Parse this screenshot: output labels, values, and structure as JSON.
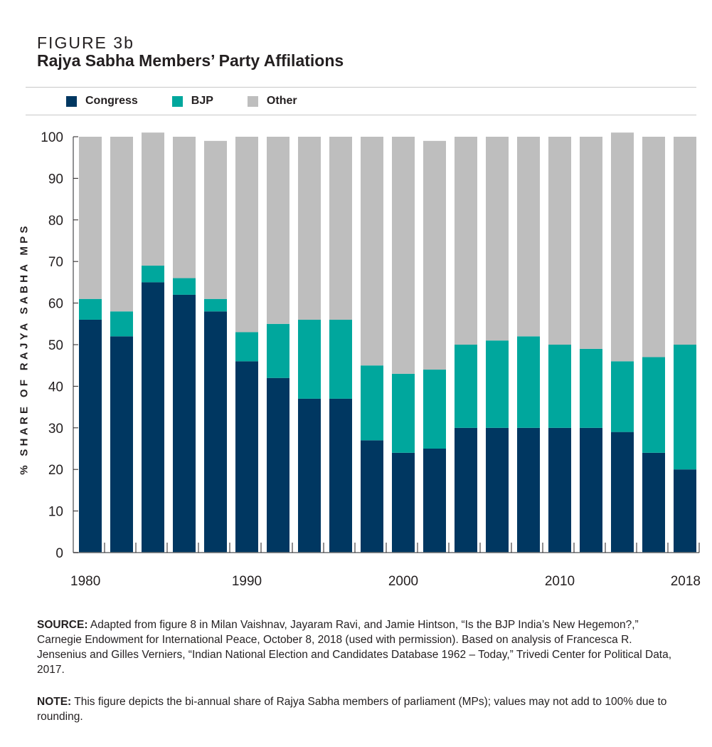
{
  "figure_label": "FIGURE 3b",
  "title": "Rajya Sabha Members’ Party Affilations",
  "colors": {
    "Congress": "#003761",
    "BJP": "#00a79d",
    "Other": "#bebebe"
  },
  "chart_data": {
    "type": "bar",
    "stacked": true,
    "title": "Rajya Sabha Members’ Party Affilations",
    "xlabel": "",
    "ylabel": "% SHARE OF RAJYA SABHA MPS",
    "ylim": [
      0,
      100
    ],
    "yticks": [
      0,
      10,
      20,
      30,
      40,
      50,
      60,
      70,
      80,
      90,
      100
    ],
    "categories": [
      1980,
      1982,
      1984,
      1986,
      1988,
      1990,
      1992,
      1994,
      1996,
      1998,
      2000,
      2002,
      2004,
      2006,
      2008,
      2010,
      2012,
      2014,
      2016,
      2018
    ],
    "xtick_labels": [
      {
        "index": 0,
        "label": "1980"
      },
      {
        "index": 5,
        "label": "1990"
      },
      {
        "index": 10,
        "label": "2000"
      },
      {
        "index": 15,
        "label": "2010"
      },
      {
        "index": 19,
        "label": "2018"
      }
    ],
    "legend": {
      "placement": "top-left",
      "entries": [
        "Congress",
        "BJP",
        "Other"
      ]
    },
    "grid": false,
    "series": [
      {
        "name": "Congress",
        "values": [
          56,
          52,
          65,
          62,
          58,
          46,
          42,
          37,
          37,
          27,
          24,
          25,
          30,
          30,
          30,
          30,
          30,
          29,
          24,
          20
        ]
      },
      {
        "name": "BJP",
        "values": [
          5,
          6,
          4,
          4,
          3,
          7,
          13,
          19,
          19,
          18,
          19,
          19,
          20,
          21,
          22,
          20,
          19,
          17,
          23,
          30
        ]
      },
      {
        "name": "Other",
        "values": [
          39,
          42,
          32,
          34,
          38,
          47,
          45,
          44,
          44,
          55,
          57,
          55,
          50,
          49,
          48,
          50,
          51,
          55,
          53,
          50
        ]
      }
    ]
  },
  "notes": {
    "source_label": "SOURCE:",
    "source_text": " Adapted from figure 8 in Milan Vaishnav, Jayaram Ravi, and Jamie Hintson, “Is the BJP India’s New Hegemon?,” Carnegie Endowment for International Peace, October 8, 2018 (used with permission). Based on analysis of Francesca R. Jensenius and Gilles Verniers, “Indian National Election and Candidates Database 1962 – Today,” Trivedi Center for Political Data, 2017.",
    "note_label": "NOTE:",
    "note_text": " This figure depicts the bi-annual share of Rajya Sabha members of parliament (MPs); values may not add to 100% due to rounding."
  }
}
